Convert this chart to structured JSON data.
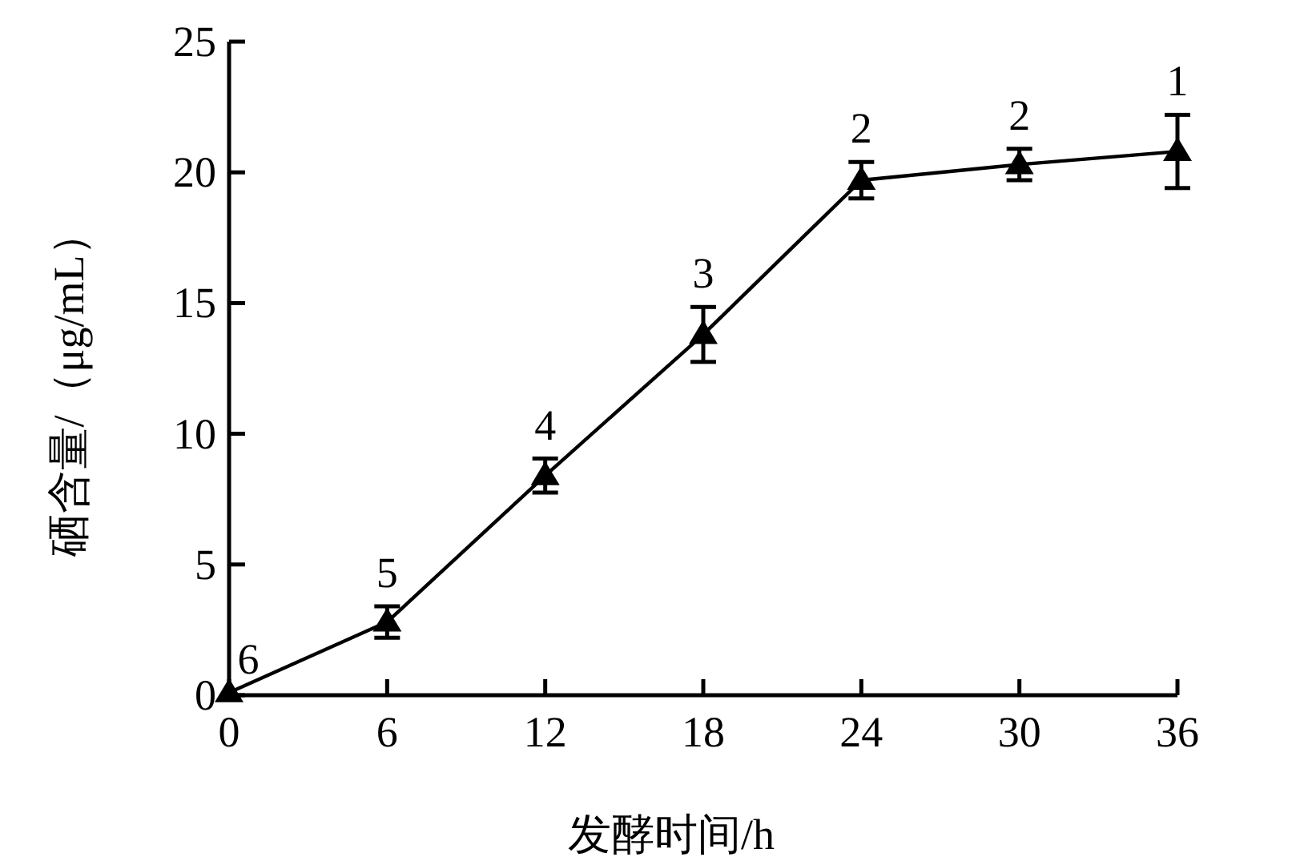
{
  "chart_data": {
    "type": "line",
    "xlabel": "发酵时间/h",
    "ylabel": "硒含量/（μg/mL）",
    "x": [
      0,
      6,
      12,
      18,
      24,
      30,
      36
    ],
    "values": [
      0.1,
      2.8,
      8.4,
      13.8,
      19.7,
      20.3,
      20.8
    ],
    "errors": [
      null,
      0.6,
      0.65,
      1.05,
      0.7,
      0.6,
      1.4
    ],
    "color": "#000000",
    "marker": "triangle",
    "xlim": [
      0,
      36
    ],
    "ylim": [
      0,
      25
    ],
    "xticks": [
      0,
      6,
      12,
      18,
      24,
      30,
      36
    ],
    "yticks": [
      0,
      5,
      10,
      15,
      20,
      25
    ],
    "annotations": [
      {
        "text": "6",
        "x": 0,
        "y": 0.1
      },
      {
        "text": "5",
        "x": 6,
        "y": 2.8
      },
      {
        "text": "4",
        "x": 12,
        "y": 8.4
      },
      {
        "text": "3",
        "x": 18,
        "y": 13.8
      },
      {
        "text": "2",
        "x": 24,
        "y": 19.7
      },
      {
        "text": "2",
        "x": 30,
        "y": 20.3
      },
      {
        "text": "1",
        "x": 36,
        "y": 20.8
      }
    ]
  }
}
